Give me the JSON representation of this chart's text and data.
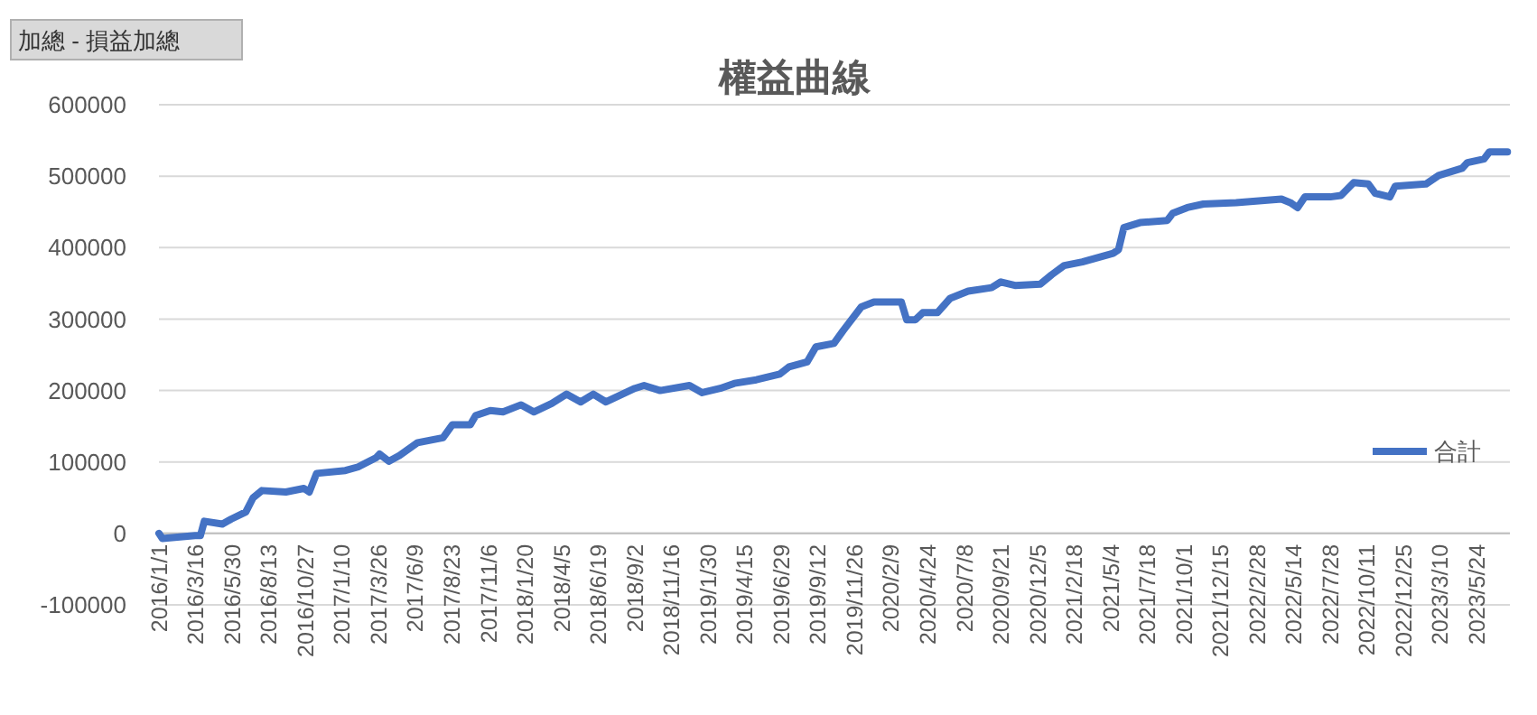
{
  "chart_data": {
    "type": "line",
    "title": "權益曲線",
    "annotations": [
      "加總 - 損益加總"
    ],
    "x": [
      "2016-01-01",
      "2016-01-08",
      "2016-03-15",
      "2016-03-26",
      "2016-04-03",
      "2016-05-10",
      "2016-05-28",
      "2016-06-27",
      "2016-07-12",
      "2016-07-30",
      "2016-09-17",
      "2016-10-24",
      "2016-11-04",
      "2016-11-19",
      "2017-01-17",
      "2017-02-12",
      "2017-03-21",
      "2017-03-28",
      "2017-04-16",
      "2017-05-08",
      "2017-06-14",
      "2017-08-05",
      "2017-08-24",
      "2017-09-30",
      "2017-10-11",
      "2017-11-10",
      "2017-12-06",
      "2018-01-12",
      "2018-02-07",
      "2018-03-16",
      "2018-04-15",
      "2018-05-14",
      "2018-06-09",
      "2018-07-05",
      "2018-09-02",
      "2018-09-21",
      "2018-10-24",
      "2018-12-23",
      "2019-01-18",
      "2019-02-24",
      "2019-03-25",
      "2019-05-09",
      "2019-06-26",
      "2019-07-15",
      "2019-08-21",
      "2019-09-08",
      "2019-10-15",
      "2019-11-03",
      "2019-12-10",
      "2020-01-05",
      "2020-03-01",
      "2020-03-12",
      "2020-03-30",
      "2020-04-14",
      "2020-05-14",
      "2020-06-09",
      "2020-07-16",
      "2020-09-02",
      "2020-09-21",
      "2020-10-20",
      "2020-12-11",
      "2021-01-03",
      "2021-01-29",
      "2021-03-07",
      "2021-05-09",
      "2021-05-20",
      "2021-05-31",
      "2021-07-03",
      "2021-08-28",
      "2021-09-08",
      "2021-10-08",
      "2021-11-10",
      "2022-01-16",
      "2022-04-19",
      "2022-05-07",
      "2022-05-22",
      "2022-06-06",
      "2022-07-28",
      "2022-08-19",
      "2022-09-14",
      "2022-10-14",
      "2022-10-28",
      "2022-11-27",
      "2022-12-08",
      "2023-02-09",
      "2023-03-07",
      "2023-04-24",
      "2023-05-05",
      "2023-06-08",
      "2023-06-19",
      "2023-07-26"
    ],
    "series": [
      {
        "name": "合計",
        "color": "#4472c4",
        "values": [
          0,
          -7000,
          -3000,
          -3000,
          17000,
          13000,
          20000,
          30000,
          50000,
          60000,
          58000,
          63000,
          58000,
          84000,
          88000,
          93000,
          106000,
          111000,
          101000,
          109000,
          127000,
          134000,
          152000,
          152000,
          165000,
          172000,
          170000,
          180000,
          170000,
          182000,
          195000,
          184000,
          195000,
          184000,
          203000,
          207000,
          200000,
          207000,
          197000,
          203000,
          210000,
          215000,
          223000,
          233000,
          240000,
          261000,
          266000,
          284000,
          317000,
          324000,
          324000,
          299000,
          299000,
          309000,
          309000,
          329000,
          339000,
          344000,
          352000,
          347000,
          349000,
          362000,
          375000,
          380000,
          392000,
          397000,
          428000,
          435000,
          438000,
          448000,
          456000,
          461000,
          463000,
          468000,
          463000,
          456000,
          471000,
          471000,
          473000,
          491000,
          489000,
          476000,
          471000,
          486000,
          489000,
          501000,
          511000,
          519000,
          524000,
          534000,
          534000
        ]
      }
    ],
    "xlim": [
      "2016-01-01",
      "2023-07-31"
    ],
    "xticks": [
      {
        "value": "2016-01-01",
        "label": "2016/1/1"
      },
      {
        "value": "2016-03-16",
        "label": "2016/3/16"
      },
      {
        "value": "2016-05-30",
        "label": "2016/5/30"
      },
      {
        "value": "2016-08-13",
        "label": "2016/8/13"
      },
      {
        "value": "2016-10-27",
        "label": "2016/10/27"
      },
      {
        "value": "2017-01-10",
        "label": "2017/1/10"
      },
      {
        "value": "2017-03-26",
        "label": "2017/3/26"
      },
      {
        "value": "2017-06-09",
        "label": "2017/6/9"
      },
      {
        "value": "2017-08-23",
        "label": "2017/8/23"
      },
      {
        "value": "2017-11-06",
        "label": "2017/11/6"
      },
      {
        "value": "2018-01-20",
        "label": "2018/1/20"
      },
      {
        "value": "2018-04-05",
        "label": "2018/4/5"
      },
      {
        "value": "2018-06-19",
        "label": "2018/6/19"
      },
      {
        "value": "2018-09-02",
        "label": "2018/9/2"
      },
      {
        "value": "2018-11-16",
        "label": "2018/11/16"
      },
      {
        "value": "2019-01-30",
        "label": "2019/1/30"
      },
      {
        "value": "2019-04-15",
        "label": "2019/4/15"
      },
      {
        "value": "2019-06-29",
        "label": "2019/6/29"
      },
      {
        "value": "2019-09-12",
        "label": "2019/9/12"
      },
      {
        "value": "2019-11-26",
        "label": "2019/11/26"
      },
      {
        "value": "2020-02-09",
        "label": "2020/2/9"
      },
      {
        "value": "2020-04-24",
        "label": "2020/4/24"
      },
      {
        "value": "2020-07-08",
        "label": "2020/7/8"
      },
      {
        "value": "2020-09-21",
        "label": "2020/9/21"
      },
      {
        "value": "2020-12-05",
        "label": "2020/12/5"
      },
      {
        "value": "2021-02-18",
        "label": "2021/2/18"
      },
      {
        "value": "2021-05-04",
        "label": "2021/5/4"
      },
      {
        "value": "2021-07-18",
        "label": "2021/7/18"
      },
      {
        "value": "2021-10-01",
        "label": "2021/10/1"
      },
      {
        "value": "2021-12-15",
        "label": "2021/12/15"
      },
      {
        "value": "2022-02-28",
        "label": "2022/2/28"
      },
      {
        "value": "2022-05-14",
        "label": "2022/5/14"
      },
      {
        "value": "2022-07-28",
        "label": "2022/7/28"
      },
      {
        "value": "2022-10-11",
        "label": "2022/10/11"
      },
      {
        "value": "2022-12-25",
        "label": "2022/12/25"
      },
      {
        "value": "2023-03-10",
        "label": "2023/3/10"
      },
      {
        "value": "2023-05-24",
        "label": "2023/5/24"
      }
    ],
    "ylim": [
      -100000,
      600000
    ],
    "yticks": [
      -100000,
      0,
      100000,
      200000,
      300000,
      400000,
      500000,
      600000
    ],
    "grid": "y",
    "legend": "right",
    "marker": "none",
    "line_style": "solid"
  }
}
